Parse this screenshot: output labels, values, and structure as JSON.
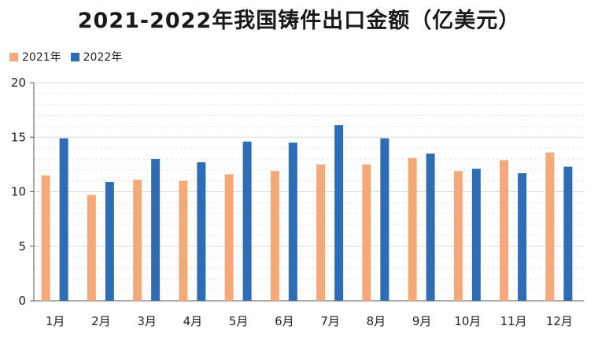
{
  "colors": {
    "series_2021": "#F4A97A",
    "series_2022": "#2E6DB4",
    "grid": "#d9d9d9",
    "axis": "#555555"
  },
  "chart_data": {
    "type": "bar",
    "title": "2021-2022年我国铸件出口金额（亿美元）",
    "xlabel": "",
    "ylabel": "",
    "ylim": [
      0,
      20
    ],
    "yticks": [
      "0",
      "5",
      "10",
      "15",
      "20"
    ],
    "grid": true,
    "legend_position": "top-left",
    "categories": [
      "1月",
      "2月",
      "3月",
      "4月",
      "5月",
      "6月",
      "7月",
      "8月",
      "9月",
      "10月",
      "11月",
      "12月"
    ],
    "series": [
      {
        "name": "2021年",
        "values": [
          11.5,
          9.7,
          11.1,
          11.0,
          11.6,
          11.9,
          12.5,
          12.5,
          13.1,
          11.9,
          12.9,
          13.6
        ]
      },
      {
        "name": "2022年",
        "values": [
          14.9,
          10.9,
          13.0,
          12.7,
          14.6,
          14.5,
          16.1,
          14.9,
          13.5,
          12.1,
          11.7,
          12.3
        ]
      }
    ]
  }
}
